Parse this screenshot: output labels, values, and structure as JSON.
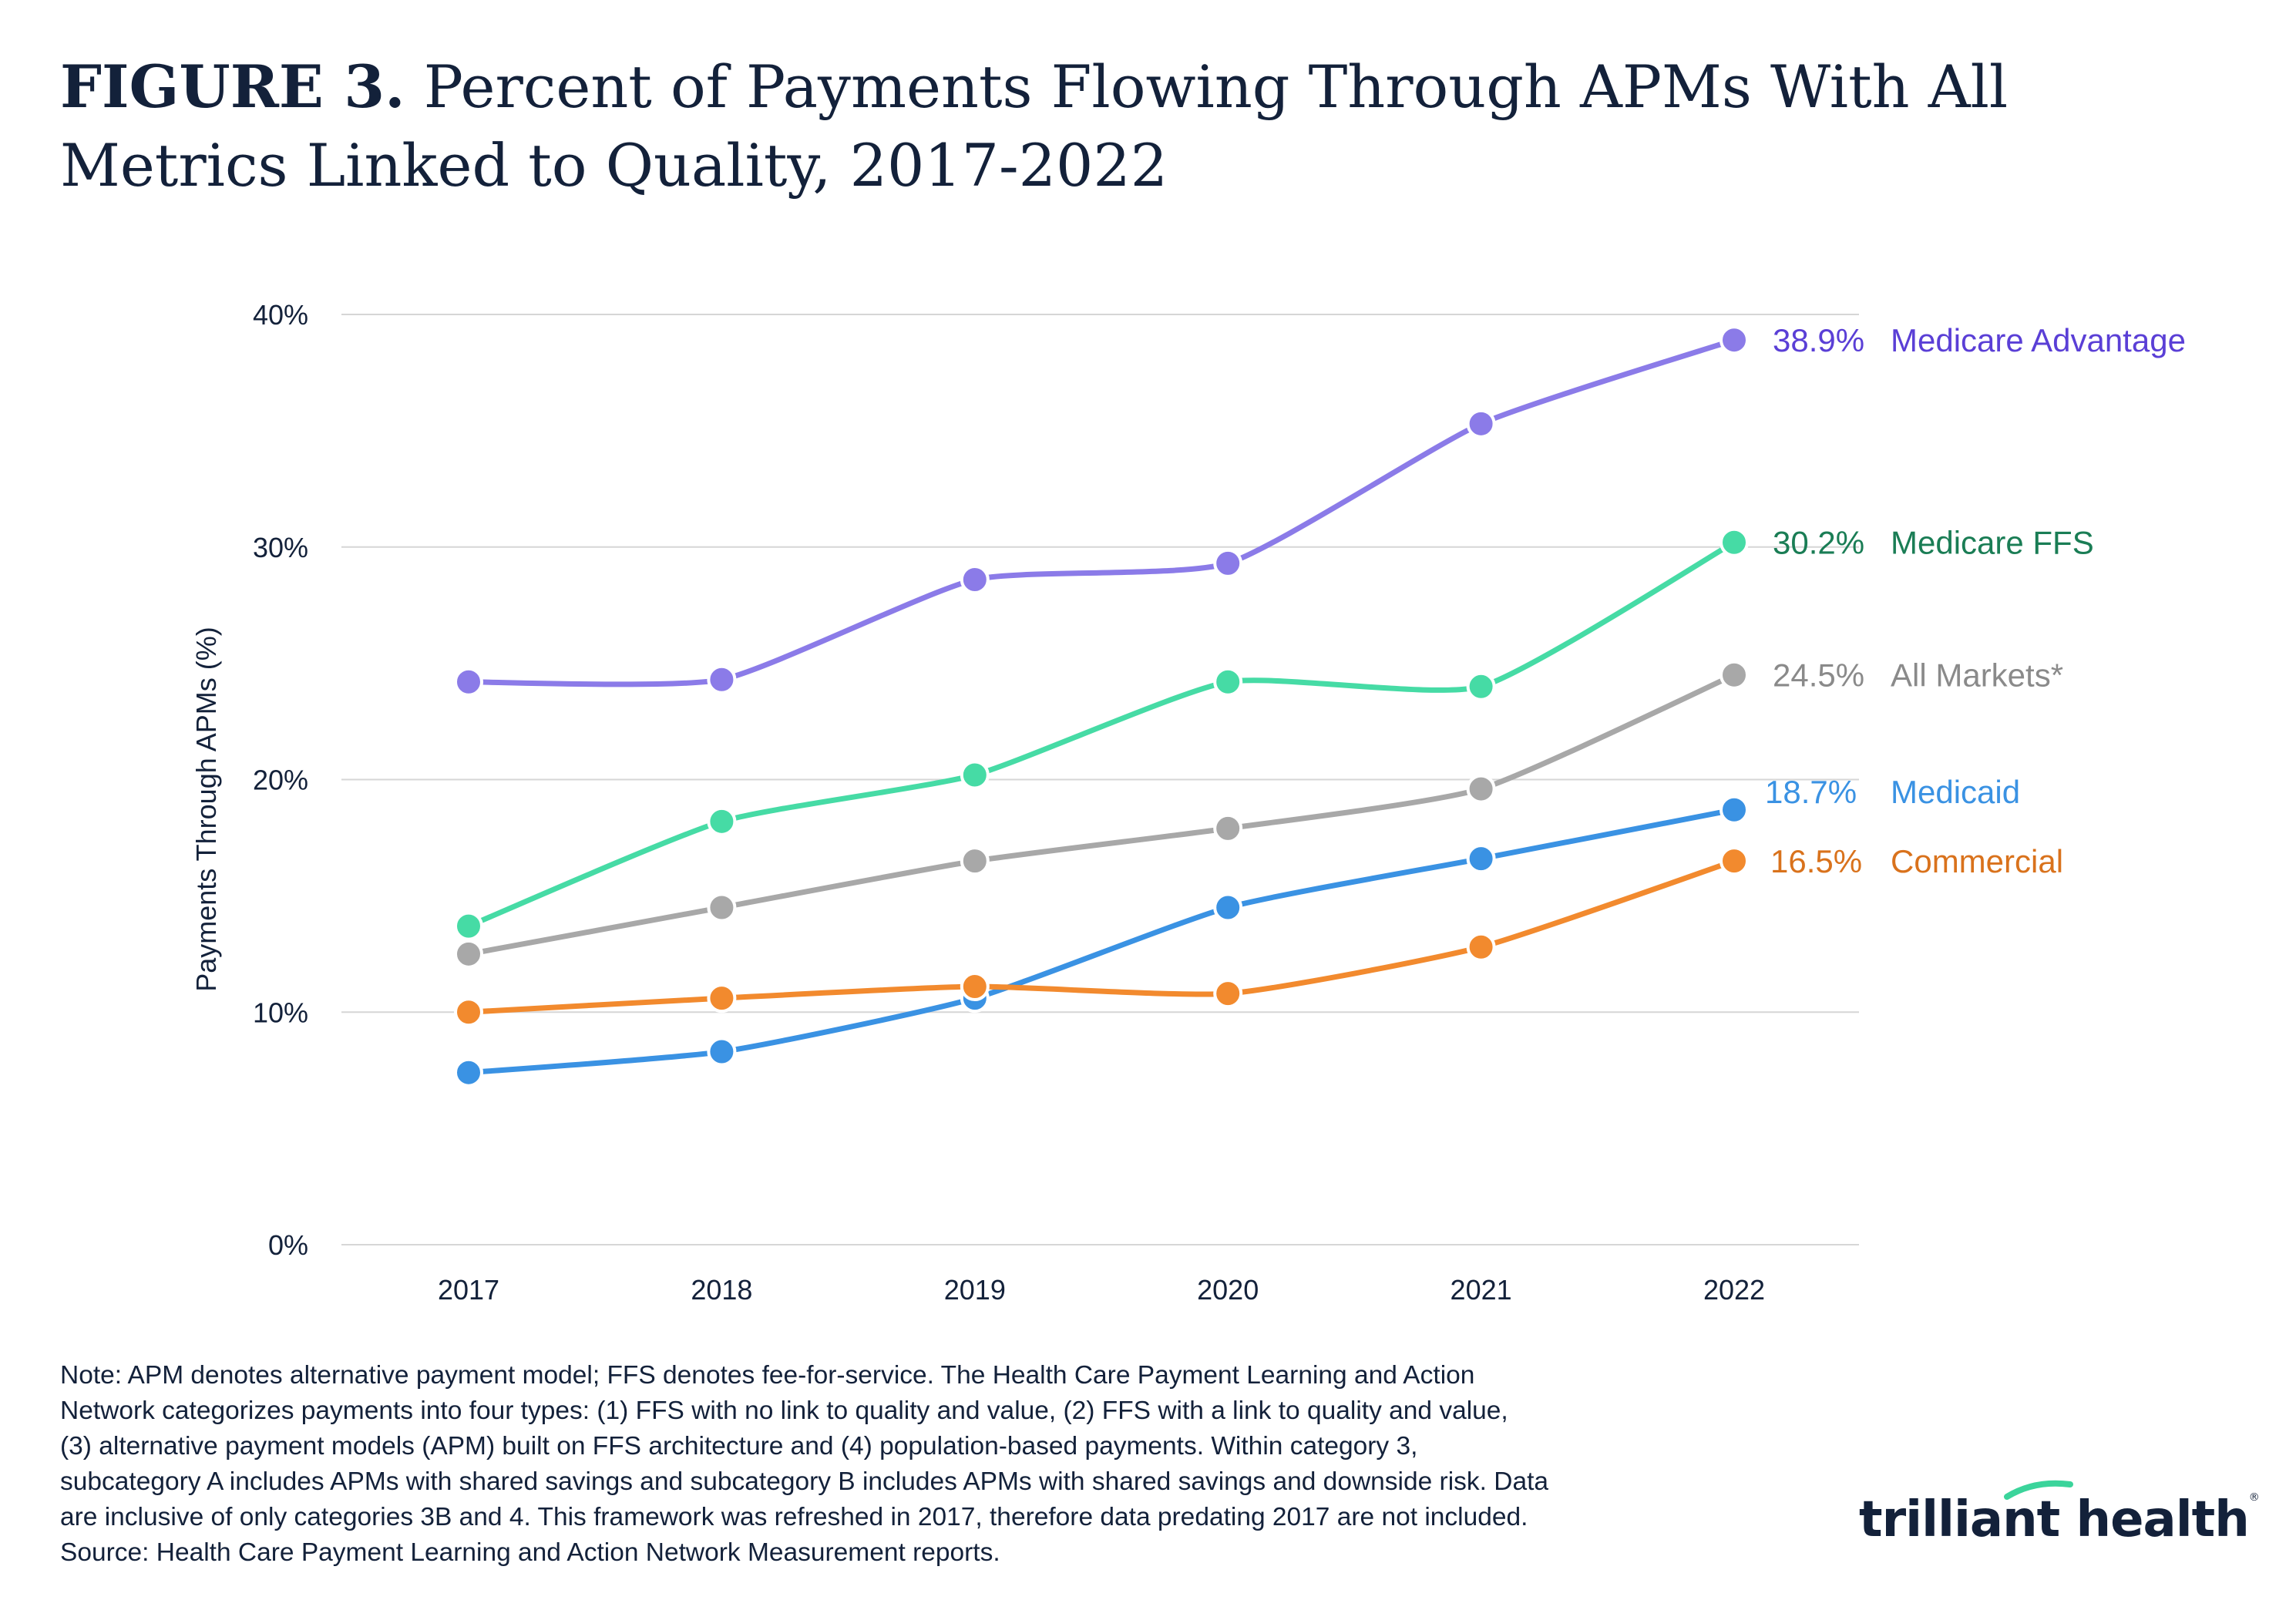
{
  "title": {
    "figure_label": "FIGURE 3.",
    "text": "Percent of Payments Flowing Through APMs With All Metrics Linked to Quality, 2017-2022"
  },
  "chart_data": {
    "type": "line",
    "categories": [
      "2017",
      "2018",
      "2019",
      "2020",
      "2021",
      "2022"
    ],
    "ylabel": "Payments Through APMs (%)",
    "xlabel": "",
    "ylim": [
      0,
      40
    ],
    "yticks": [
      0,
      10,
      20,
      30,
      40
    ],
    "ytick_labels": [
      "0%",
      "10%",
      "20%",
      "30%",
      "40%"
    ],
    "grid": "horizontal",
    "legend": "direct labels at right end of lines",
    "series": [
      {
        "name": "Medicare Advantage",
        "end_label": "38.9%",
        "color": "#8b7be8",
        "label_color": "#5a3fd6",
        "values": [
          24.2,
          24.3,
          28.6,
          29.3,
          35.3,
          38.9
        ]
      },
      {
        "name": "Medicare FFS",
        "end_label": "30.2%",
        "color": "#46dba5",
        "label_color": "#1a7d55",
        "values": [
          13.7,
          18.2,
          20.2,
          24.2,
          24.0,
          30.2
        ]
      },
      {
        "name": "All Markets*",
        "end_label": "24.5%",
        "color": "#a8a8a8",
        "label_color": "#8a8a8a",
        "values": [
          12.5,
          14.5,
          16.5,
          17.9,
          19.6,
          24.5
        ]
      },
      {
        "name": "Medicaid",
        "end_label": "18.7%",
        "color": "#3a92e3",
        "label_color": "#3a92e3",
        "values": [
          7.4,
          8.3,
          10.6,
          14.5,
          16.6,
          18.7
        ]
      },
      {
        "name": "Commercial",
        "end_label": "16.5%",
        "color": "#f28a2e",
        "label_color": "#d9721c",
        "values": [
          10.0,
          10.6,
          11.1,
          10.8,
          12.8,
          16.5
        ]
      }
    ]
  },
  "note": {
    "lines": [
      "Note: APM denotes alternative payment model; FFS denotes fee-for-service. The Health Care Payment Learning and Action",
      "Network categorizes payments into four types: (1) FFS with no link to quality and value, (2) FFS with a link to quality and value,",
      "(3) alternative payment models (APM) built on FFS architecture and (4) population-based payments. Within category 3,",
      "subcategory A includes APMs with shared savings and subcategory B includes APMs with shared savings and downside risk. Data",
      "are inclusive of only categories 3B and 4. This framework was refreshed in 2017, therefore data predating 2017 are not included.",
      "Source: Health Care Payment Learning and Action Network Measurement reports."
    ]
  },
  "logo": {
    "text": "trilliant health",
    "mark": "®",
    "accent_color": "#3bd49b"
  }
}
